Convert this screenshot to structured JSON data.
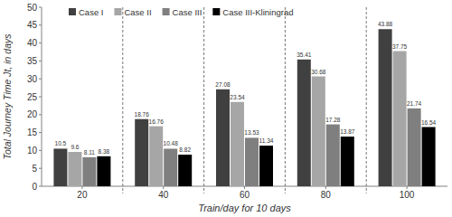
{
  "chart_data": {
    "type": "bar",
    "x_label": "Train/day for 10 days",
    "y_label": "Total Journey Time Jt, in days",
    "categories": [
      "20",
      "40",
      "60",
      "80",
      "100"
    ],
    "series": [
      {
        "name": "Case I",
        "color": "#404040",
        "values": [
          10.5,
          18.76,
          27.08,
          35.41,
          43.88
        ]
      },
      {
        "name": "Case II",
        "color": "#a6a6a6",
        "values": [
          9.6,
          16.76,
          23.54,
          30.68,
          37.75
        ]
      },
      {
        "name": "Case III",
        "color": "#7f7f7f",
        "values": [
          8.11,
          10.48,
          13.53,
          17.28,
          21.74
        ]
      },
      {
        "name": "Case III-Kliningrad",
        "color": "#000000",
        "values": [
          8.38,
          8.82,
          11.34,
          13.87,
          16.54
        ]
      }
    ],
    "ylim": [
      0,
      50
    ],
    "yticks": [
      0,
      5,
      10,
      15,
      20,
      25,
      30,
      35,
      40,
      45,
      50
    ],
    "grid": false,
    "legend": "top-left",
    "data_labels": true
  }
}
